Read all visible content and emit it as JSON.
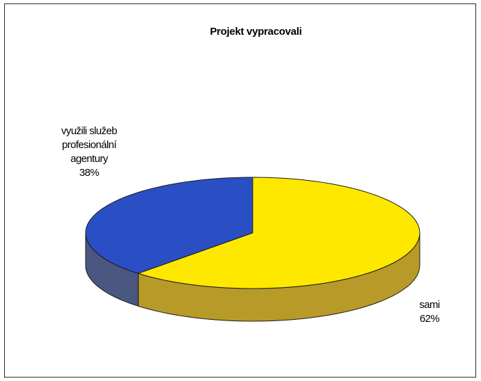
{
  "chart_data": {
    "type": "pie",
    "title": "Projekt vypracovali",
    "slices": [
      {
        "name_lines": [
          "využili služeb",
          "profesionální",
          "agentury"
        ],
        "value": 38,
        "value_label": "38%",
        "color": "#2a4fc4",
        "side_color": "#4a5780"
      },
      {
        "name_lines": [
          "sami"
        ],
        "value": 62,
        "value_label": "62%",
        "color": "#ffe800",
        "side_color": "#b89a28"
      }
    ],
    "style": "3d-pie"
  }
}
